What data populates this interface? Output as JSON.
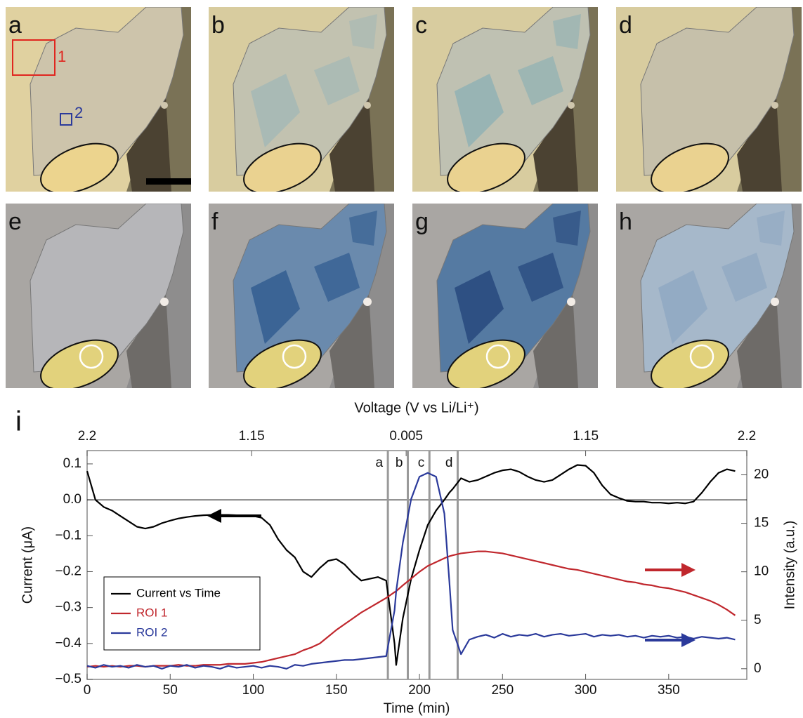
{
  "micrographs": {
    "panels": [
      "a",
      "b",
      "c",
      "d",
      "e",
      "f",
      "g",
      "h"
    ],
    "roi_labels": [
      "1",
      "2"
    ]
  },
  "chart_data": {
    "type": "line",
    "panel_label": "i",
    "x_label": "Time (min)",
    "y_label": "Current (μA)",
    "y2_label": "Intensity (a.u.)",
    "top_axis": {
      "label": "Voltage (V vs Li/Li⁺)",
      "ticks": [
        {
          "value": 0,
          "label": "2.2"
        },
        {
          "value": 99,
          "label": "1.15"
        },
        {
          "value": 192,
          "label": "0.005"
        },
        {
          "value": 300,
          "label": "1.15"
        },
        {
          "value": 397,
          "label": "2.2"
        }
      ]
    },
    "xlim": [
      0,
      397
    ],
    "xticks": [
      0,
      50,
      100,
      150,
      200,
      250,
      300,
      350
    ],
    "ylim": [
      -0.5,
      0.137
    ],
    "yticks": [
      {
        "value": -0.5,
        "label": "−0.5"
      },
      {
        "value": -0.4,
        "label": "−0.4"
      },
      {
        "value": -0.3,
        "label": "−0.3"
      },
      {
        "value": -0.2,
        "label": "−0.2"
      },
      {
        "value": -0.1,
        "label": "−0.1"
      },
      {
        "value": 0,
        "label": "0.0"
      },
      0.1
    ],
    "y2lim": [
      -1.1,
      22.5
    ],
    "y2ticks": [
      0,
      5,
      10,
      15,
      20
    ],
    "zero_line": true,
    "legend": "center left",
    "markers": [
      {
        "label": "a",
        "value": 181
      },
      {
        "label": "b",
        "value": 193
      },
      {
        "label": "c",
        "value": 206
      },
      {
        "label": "d",
        "value": 223
      }
    ],
    "marker_color": "#999999",
    "x": [
      0,
      5,
      10,
      15,
      20,
      25,
      30,
      35,
      40,
      45,
      50,
      55,
      60,
      65,
      70,
      75,
      80,
      85,
      90,
      95,
      100,
      105,
      110,
      115,
      120,
      125,
      130,
      135,
      140,
      145,
      150,
      155,
      160,
      165,
      170,
      175,
      180,
      185,
      186,
      190,
      195,
      200,
      205,
      210,
      215,
      218,
      220,
      225,
      230,
      235,
      240,
      245,
      250,
      255,
      260,
      265,
      270,
      275,
      280,
      285,
      290,
      295,
      300,
      305,
      310,
      315,
      320,
      325,
      330,
      335,
      340,
      345,
      350,
      355,
      360,
      365,
      370,
      375,
      380,
      385,
      390
    ],
    "series": [
      {
        "name": "Current vs Time",
        "color": "#000000",
        "axis": "y",
        "values": [
          0.08,
          0.0,
          -0.02,
          -0.03,
          -0.045,
          -0.06,
          -0.075,
          -0.08,
          -0.075,
          -0.065,
          -0.058,
          -0.052,
          -0.048,
          -0.045,
          -0.043,
          -0.042,
          -0.042,
          -0.042,
          -0.043,
          -0.043,
          -0.045,
          -0.05,
          -0.07,
          -0.11,
          -0.14,
          -0.16,
          -0.2,
          -0.215,
          -0.19,
          -0.17,
          -0.165,
          -0.18,
          -0.205,
          -0.225,
          -0.22,
          -0.215,
          -0.225,
          -0.4,
          -0.46,
          -0.33,
          -0.22,
          -0.14,
          -0.07,
          -0.03,
          0.0,
          0.02,
          0.03,
          0.06,
          0.05,
          0.055,
          0.065,
          0.075,
          0.082,
          0.085,
          0.078,
          0.065,
          0.055,
          0.05,
          0.055,
          0.07,
          0.085,
          0.097,
          0.095,
          0.075,
          0.04,
          0.015,
          0.005,
          -0.003,
          -0.005,
          -0.005,
          -0.008,
          -0.008,
          -0.01,
          -0.008,
          -0.01,
          -0.005,
          0.02,
          0.05,
          0.075,
          0.085,
          0.08
        ]
      },
      {
        "name": "ROI 1",
        "color": "#c0272d",
        "axis": "y2",
        "values": [
          0.2,
          0.3,
          0.2,
          0.3,
          0.2,
          0.3,
          0.3,
          0.2,
          0.3,
          0.3,
          0.3,
          0.4,
          0.3,
          0.3,
          0.4,
          0.4,
          0.4,
          0.5,
          0.5,
          0.5,
          0.6,
          0.7,
          0.9,
          1.1,
          1.3,
          1.5,
          1.9,
          2.2,
          2.6,
          3.3,
          4.0,
          4.6,
          5.2,
          5.8,
          6.3,
          6.8,
          7.3,
          7.9,
          8.0,
          8.6,
          9.3,
          10.0,
          10.6,
          11.0,
          11.4,
          11.6,
          11.7,
          11.9,
          12.0,
          12.1,
          12.1,
          12.0,
          11.9,
          11.7,
          11.5,
          11.3,
          11.1,
          10.9,
          10.7,
          10.5,
          10.3,
          10.2,
          10.0,
          9.8,
          9.6,
          9.4,
          9.2,
          9.0,
          8.9,
          8.7,
          8.6,
          8.4,
          8.3,
          8.1,
          7.9,
          7.6,
          7.3,
          7.0,
          6.6,
          6.1,
          5.5
        ]
      },
      {
        "name": "ROI 2",
        "color": "#2b3a9b",
        "axis": "y2",
        "values": [
          0.3,
          0.1,
          0.4,
          0.2,
          0.3,
          0.1,
          0.4,
          0.2,
          0.3,
          0.0,
          0.3,
          0.2,
          0.4,
          0.1,
          0.3,
          0.2,
          0.0,
          0.3,
          0.1,
          0.2,
          0.3,
          0.1,
          0.3,
          0.2,
          0.0,
          0.4,
          0.3,
          0.5,
          0.6,
          0.7,
          0.8,
          0.9,
          0.9,
          1.0,
          1.1,
          1.2,
          1.3,
          6,
          8,
          13,
          17.5,
          19.8,
          20.2,
          19.8,
          16,
          9,
          4,
          1.5,
          3.0,
          3.3,
          3.5,
          3.2,
          3.6,
          3.3,
          3.5,
          3.4,
          3.6,
          3.3,
          3.5,
          3.6,
          3.4,
          3.5,
          3.6,
          3.3,
          3.5,
          3.4,
          3.5,
          3.3,
          3.4,
          3.2,
          3.4,
          3.3,
          3.4,
          3.2,
          3.3,
          3.1,
          3.3,
          3.2,
          3.1,
          3.2,
          3.0
        ]
      }
    ]
  }
}
